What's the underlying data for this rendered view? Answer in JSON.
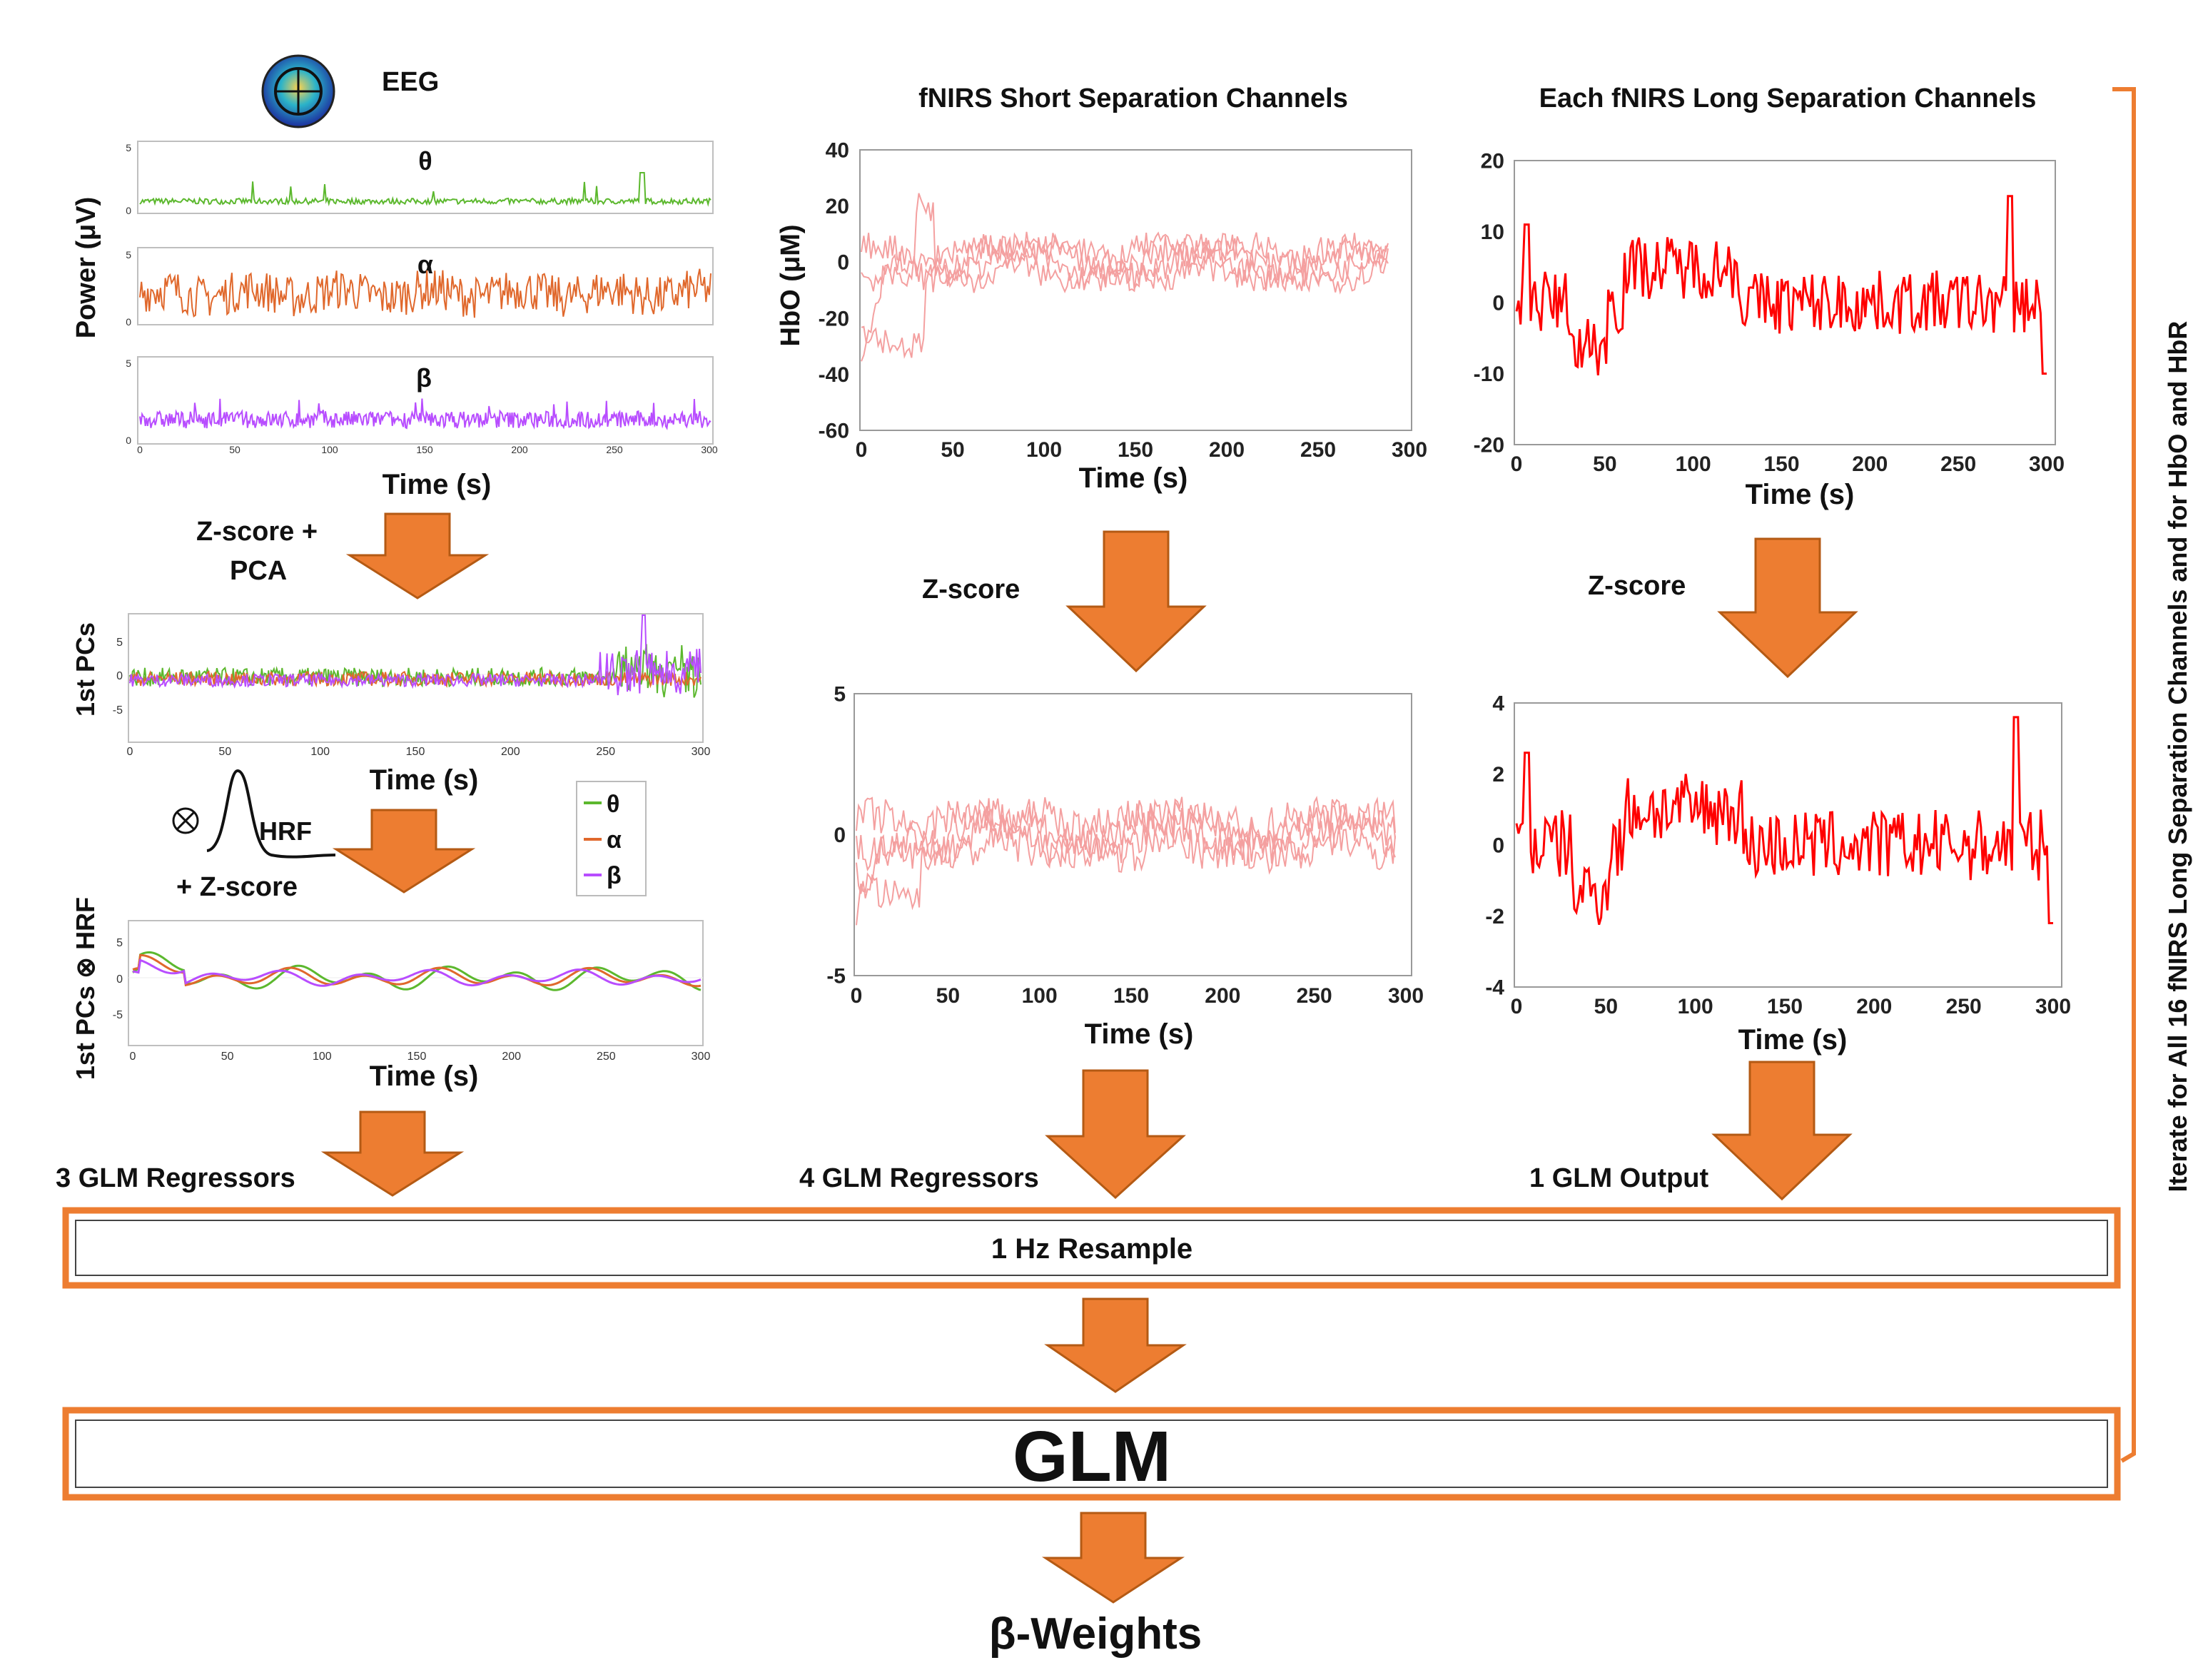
{
  "eeg": {
    "title": "EEG",
    "power_ylabel": "Power (μV)",
    "time_label": "Time (s)",
    "bands": [
      "θ",
      "α",
      "β"
    ],
    "small_yticks": [
      "5",
      "0"
    ],
    "xticks": [
      "0",
      "50",
      "100",
      "150",
      "200",
      "250",
      "300"
    ],
    "step1_label_line1": "Z-score +",
    "step1_label_line2": "PCA",
    "pcs_ylabel": "1st PCs",
    "pcs_yticks": [
      "5",
      "0",
      "-5"
    ],
    "hrf_label": "HRF",
    "hrf_zscore": "+ Z-score",
    "conv_ylabel": "1st PCs ⊗ HRF",
    "legend": [
      "θ",
      "α",
      "β"
    ],
    "regressors": "3 GLM Regressors"
  },
  "short": {
    "title": "fNIRS Short Separation Channels",
    "ylabel": "HbO (μM)",
    "yticks": [
      "40",
      "20",
      "0",
      "-20",
      "-40",
      "-60"
    ],
    "xticks": [
      "0",
      "50",
      "100",
      "150",
      "200",
      "250",
      "300"
    ],
    "time_label": "Time (s)",
    "zscore": "Z-score",
    "z_yticks": [
      "5",
      "0",
      "-5"
    ],
    "regressors": "4 GLM Regressors"
  },
  "long": {
    "title": "Each fNIRS Long Separation Channels",
    "yticks": [
      "20",
      "10",
      "0",
      "-10",
      "-20"
    ],
    "xticks": [
      "0",
      "50",
      "100",
      "150",
      "200",
      "250",
      "300"
    ],
    "time_label": "Time (s)",
    "zscore": "Z-score",
    "z_yticks": [
      "4",
      "2",
      "0",
      "-2",
      "-4"
    ],
    "output": "1 GLM Output"
  },
  "pipeline": {
    "resample": "1 Hz Resample",
    "glm": "GLM",
    "weights": "β-Weights",
    "iterate": "Iterate for All 16 fNIRS Long Separation Channels and for HbO and HbR"
  },
  "colors": {
    "theta": "#5cb82e",
    "alpha": "#e0682c",
    "beta": "#b84dff",
    "short": "#f4a0a0",
    "long": "#ff0000",
    "arrow": "#ed7d31",
    "arrow_stroke": "#b45a14"
  }
}
